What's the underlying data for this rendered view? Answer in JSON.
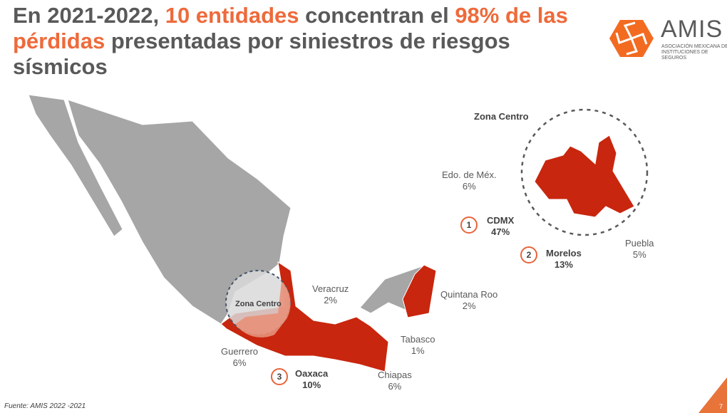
{
  "title": {
    "part1": "En 2021-2022, ",
    "hl1": "10 entidades",
    "part2": " concentran el ",
    "hl2": "98% de las pérdidas",
    "part3": " presentadas por siniestros de riesgos sísmicos"
  },
  "logo": {
    "name": "AMIS",
    "subtitle": "ASOCIACIÓN MEXICANA DE INSTITUCIONES DE SEGUROS"
  },
  "map": {
    "zona_centro_label": "Zona Centro",
    "inset_title": "Zona Centro"
  },
  "states": [
    {
      "name": "Edo. de Méx.",
      "pct": "6%"
    },
    {
      "name": "CDMX",
      "pct": "47%",
      "rank": "1"
    },
    {
      "name": "Morelos",
      "pct": "13%",
      "rank": "2"
    },
    {
      "name": "Puebla",
      "pct": "5%"
    },
    {
      "name": "Veracruz",
      "pct": "2%"
    },
    {
      "name": "Quintana Roo",
      "pct": "2%"
    },
    {
      "name": "Tabasco",
      "pct": "1%"
    },
    {
      "name": "Guerrero",
      "pct": "6%"
    },
    {
      "name": "Oaxaca",
      "pct": "10%",
      "rank": "3"
    },
    {
      "name": "Chiapas",
      "pct": "6%"
    }
  ],
  "colors": {
    "accent": "#ee6a3b",
    "red": "#c8260e",
    "gray": "#a6a6a6"
  },
  "footer": {
    "source": "Fuente: AMIS 2022 -2021",
    "page": "7"
  }
}
